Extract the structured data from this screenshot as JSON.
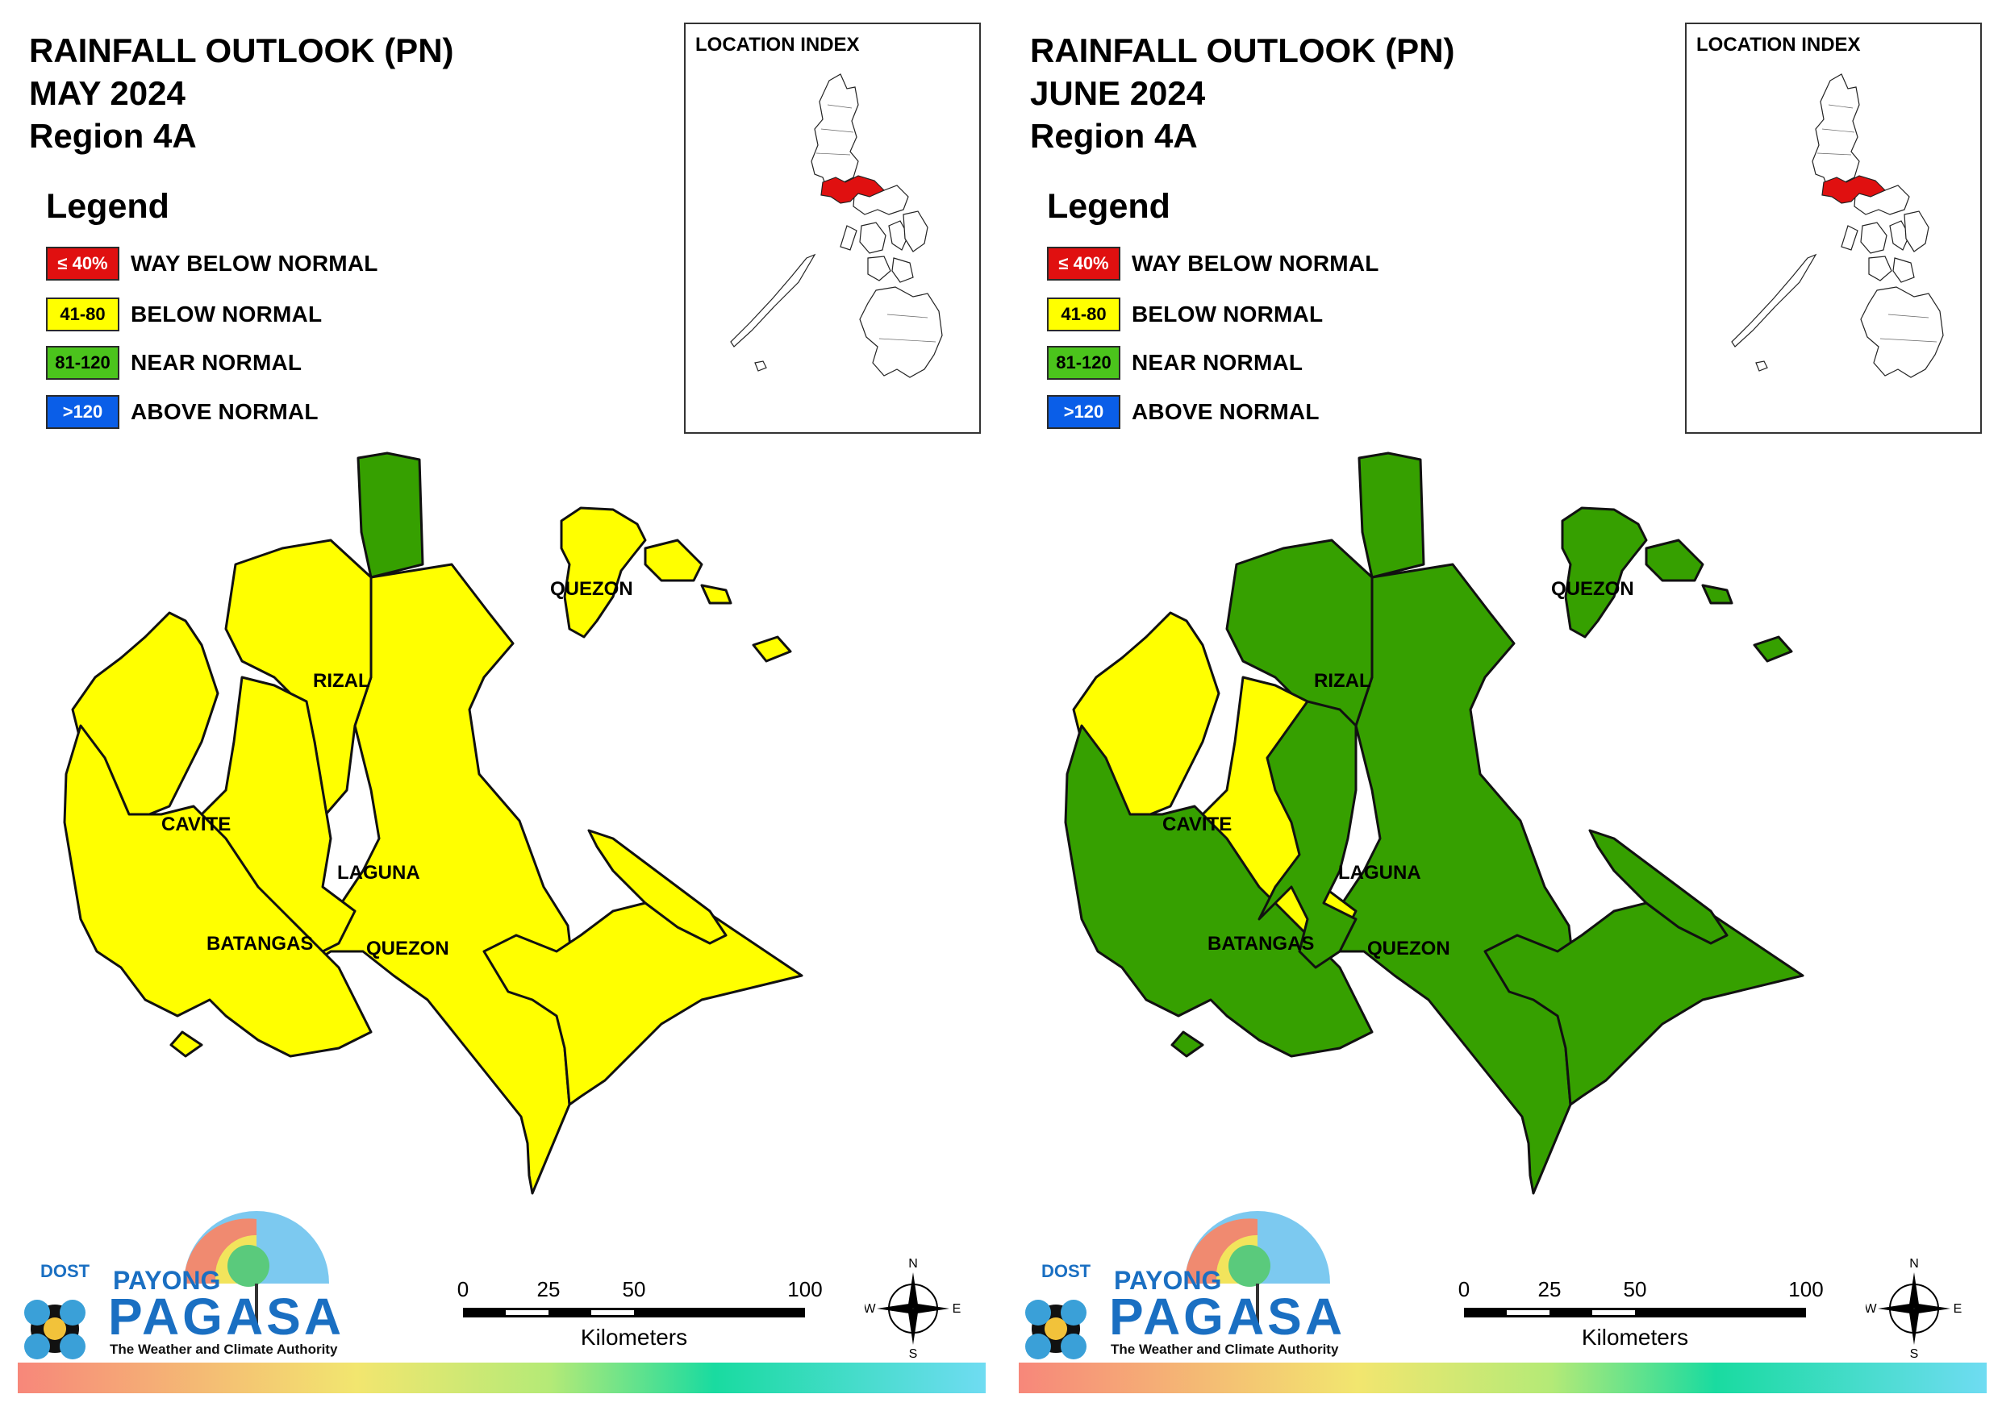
{
  "panels": [
    {
      "title_line1": "RAINFALL OUTLOOK (PN)",
      "title_line2": "MAY 2024",
      "title_line3": "Region 4A",
      "province_colors": {
        "cavite": "#ffff00",
        "batangas": "#ffff00",
        "laguna": "#ffff00",
        "rizal": "#ffff00",
        "quezon_main": "#ffff00",
        "quezon_north": "#36a000",
        "islands": "#ffff00",
        "laguna_overlay": "none"
      }
    },
    {
      "title_line1": "RAINFALL OUTLOOK (PN)",
      "title_line2": "JUNE 2024",
      "title_line3": "Region 4A",
      "province_colors": {
        "cavite": "#ffff00",
        "batangas": "#36a000",
        "laguna": "#ffff00",
        "rizal": "#36a000",
        "quezon_main": "#36a000",
        "quezon_north": "#36a000",
        "islands": "#36a000",
        "laguna_overlay": "#36a000"
      }
    }
  ],
  "legend": {
    "title": "Legend",
    "items": [
      {
        "range": "≤ 40%",
        "label": "WAY BELOW NORMAL",
        "color": "#e01010",
        "text_color": "#ffffff"
      },
      {
        "range": "41-80",
        "label": "BELOW NORMAL",
        "color": "#ffff00",
        "text_color": "#000000"
      },
      {
        "range": "81-120",
        "label": "NEAR NORMAL",
        "color": "#4bc41c",
        "text_color": "#000000"
      },
      {
        "range": ">120",
        "label": "ABOVE NORMAL",
        "color": "#0a5ee8",
        "text_color": "#ffffff"
      }
    ]
  },
  "inset": {
    "title": "LOCATION INDEX",
    "highlight_color": "#e01010"
  },
  "labels": {
    "rizal": "RIZAL",
    "cavite": "CAVITE",
    "laguna": "LAGUNA",
    "batangas": "BATANGAS",
    "quezon": "QUEZON"
  },
  "scale_bar": {
    "ticks": [
      "0",
      "25",
      "50",
      "100"
    ],
    "unit": "Kilometers"
  },
  "compass": {
    "n": "N",
    "s": "S",
    "e": "E",
    "w": "W"
  },
  "logo": {
    "dost": "DOST",
    "payong": "PAYONG",
    "pagasa": "PAGASA",
    "tagline": "The Weather and Climate Authority"
  }
}
